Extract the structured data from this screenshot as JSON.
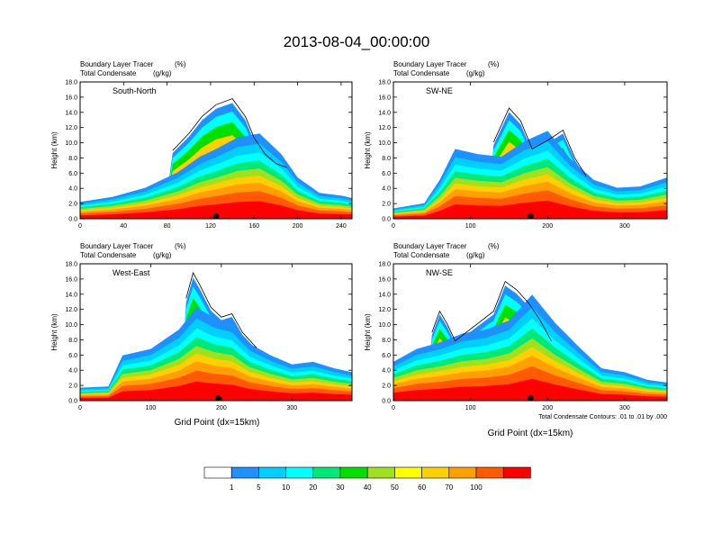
{
  "figure": {
    "title": "2013-08-04_00:00:00",
    "contour_note": "Total Condensate Contours: .01 to .01 by .000",
    "xlabel": "Grid Point (dx=15km)"
  },
  "colorbar": {
    "labels": [
      "1",
      "5",
      "10",
      "20",
      "30",
      "40",
      "50",
      "60",
      "70",
      "100"
    ],
    "colors": [
      "#ffffff",
      "#1e90ff",
      "#00cfff",
      "#00ffff",
      "#00e87a",
      "#00e000",
      "#9fe01f",
      "#ffff00",
      "#ffd000",
      "#ffa000",
      "#ff5a00",
      "#ff0000"
    ]
  },
  "chart_data": [
    {
      "type": "heatmap",
      "panel_label": "South-North",
      "left_title_1": "Boundary Layer Tracer",
      "left_title_2": "Total Condensate",
      "unit_1": "(%)",
      "unit_2": "(g/kg)",
      "ylabel": "Height (km)",
      "xlabel": "",
      "xlim": [
        0,
        250
      ],
      "ylim": [
        0,
        18
      ],
      "xticks": [
        0,
        40,
        80,
        120,
        160,
        200,
        240
      ],
      "yticks": [
        "0.0",
        "2.0",
        "4.0",
        "6.0",
        "8.0",
        "10.0",
        "12.0",
        "14.0",
        "16.0",
        "18.0"
      ],
      "marker_x": 125,
      "bl_top": [
        [
          0,
          1.3
        ],
        [
          30,
          1.7
        ],
        [
          60,
          2.4
        ],
        [
          90,
          3.6
        ],
        [
          110,
          4.8
        ],
        [
          125,
          5.4
        ],
        [
          145,
          6.3
        ],
        [
          165,
          6.6
        ],
        [
          185,
          5.0
        ],
        [
          200,
          3.2
        ],
        [
          220,
          2.0
        ],
        [
          240,
          1.8
        ],
        [
          250,
          1.6
        ]
      ],
      "bl_hi": [
        [
          85,
          8.0
        ],
        [
          100,
          10.0
        ],
        [
          112,
          12.0
        ],
        [
          125,
          13.4
        ],
        [
          140,
          14.1
        ],
        [
          152,
          12.0
        ],
        [
          160,
          9.5
        ],
        [
          170,
          7.6
        ],
        [
          180,
          6.5
        ],
        [
          190,
          6.0
        ]
      ]
    },
    {
      "type": "heatmap",
      "panel_label": "SW-NE",
      "left_title_1": "Boundary Layer Tracer",
      "left_title_2": "Total Condensate",
      "unit_1": "(%)",
      "unit_2": "(g/kg)",
      "ylabel": "Height (km)",
      "xlabel": "",
      "xlim": [
        0,
        355
      ],
      "ylim": [
        0,
        18
      ],
      "xticks": [
        0,
        100,
        200,
        300
      ],
      "yticks": [
        "0.0",
        "2.0",
        "4.0",
        "6.0",
        "8.0",
        "10.0",
        "12.0",
        "14.0",
        "16.0",
        "18.0"
      ],
      "marker_x": 178,
      "bl_top": [
        [
          0,
          0.8
        ],
        [
          40,
          1.2
        ],
        [
          60,
          3.0
        ],
        [
          80,
          5.4
        ],
        [
          110,
          5.0
        ],
        [
          140,
          4.8
        ],
        [
          170,
          6.0
        ],
        [
          200,
          6.8
        ],
        [
          230,
          4.6
        ],
        [
          260,
          3.0
        ],
        [
          290,
          2.4
        ],
        [
          320,
          2.5
        ],
        [
          355,
          3.2
        ]
      ],
      "bl_hi": [
        [
          130,
          9.0
        ],
        [
          150,
          13.0
        ],
        [
          165,
          11.5
        ],
        [
          180,
          8.2
        ],
        [
          200,
          9.2
        ],
        [
          220,
          10.4
        ],
        [
          235,
          7.2
        ],
        [
          250,
          5.0
        ]
      ]
    },
    {
      "type": "heatmap",
      "panel_label": "West-East",
      "left_title_1": "Boundary Layer Tracer",
      "left_title_2": "Total Condensate",
      "unit_1": "(%)",
      "unit_2": "(g/kg)",
      "ylabel": "Height (km)",
      "xlabel": "Grid Point (dx=15km)",
      "xlim": [
        0,
        385
      ],
      "ylim": [
        0,
        18
      ],
      "xticks": [
        0,
        100,
        200,
        300
      ],
      "yticks": [
        "0.0",
        "2.0",
        "4.0",
        "6.0",
        "8.0",
        "10.0",
        "12.0",
        "14.0",
        "16.0",
        "18.0"
      ],
      "marker_x": 195,
      "bl_top": [
        [
          0,
          1.0
        ],
        [
          40,
          1.1
        ],
        [
          60,
          3.5
        ],
        [
          100,
          4.0
        ],
        [
          140,
          5.5
        ],
        [
          165,
          7.2
        ],
        [
          190,
          6.4
        ],
        [
          215,
          6.0
        ],
        [
          240,
          4.4
        ],
        [
          270,
          3.5
        ],
        [
          300,
          2.8
        ],
        [
          330,
          3.0
        ],
        [
          360,
          2.5
        ],
        [
          385,
          2.2
        ]
      ],
      "bl_hi": [
        [
          150,
          12.0
        ],
        [
          160,
          15.0
        ],
        [
          170,
          13.5
        ],
        [
          185,
          11.0
        ],
        [
          200,
          9.8
        ],
        [
          215,
          10.2
        ],
        [
          230,
          8.0
        ],
        [
          250,
          6.2
        ]
      ]
    },
    {
      "type": "heatmap",
      "panel_label": "NW-SE",
      "left_title_1": "Boundary Layer Tracer",
      "left_title_2": "Total Condensate",
      "unit_1": "(%)",
      "unit_2": "(g/kg)",
      "ylabel": "Height (km)",
      "xlabel": "",
      "xlim": [
        0,
        355
      ],
      "ylim": [
        0,
        18
      ],
      "xticks": [
        0,
        100,
        200,
        300
      ],
      "yticks": [
        "0.0",
        "2.0",
        "4.0",
        "6.0",
        "8.0",
        "10.0",
        "12.0",
        "14.0",
        "16.0",
        "18.0"
      ],
      "marker_x": 178,
      "bl_top": [
        [
          0,
          3.0
        ],
        [
          30,
          4.0
        ],
        [
          60,
          4.5
        ],
        [
          90,
          5.2
        ],
        [
          120,
          5.5
        ],
        [
          150,
          6.2
        ],
        [
          180,
          8.2
        ],
        [
          210,
          6.0
        ],
        [
          240,
          4.2
        ],
        [
          270,
          2.5
        ],
        [
          300,
          2.2
        ],
        [
          330,
          1.6
        ],
        [
          355,
          1.4
        ]
      ],
      "bl_hi": [
        [
          50,
          8.0
        ],
        [
          60,
          10.5
        ],
        [
          70,
          9.0
        ],
        [
          80,
          7.0
        ],
        [
          130,
          10.5
        ],
        [
          145,
          14.0
        ],
        [
          160,
          13.0
        ],
        [
          175,
          11.5
        ],
        [
          190,
          9.5
        ],
        [
          205,
          7.0
        ]
      ]
    }
  ]
}
